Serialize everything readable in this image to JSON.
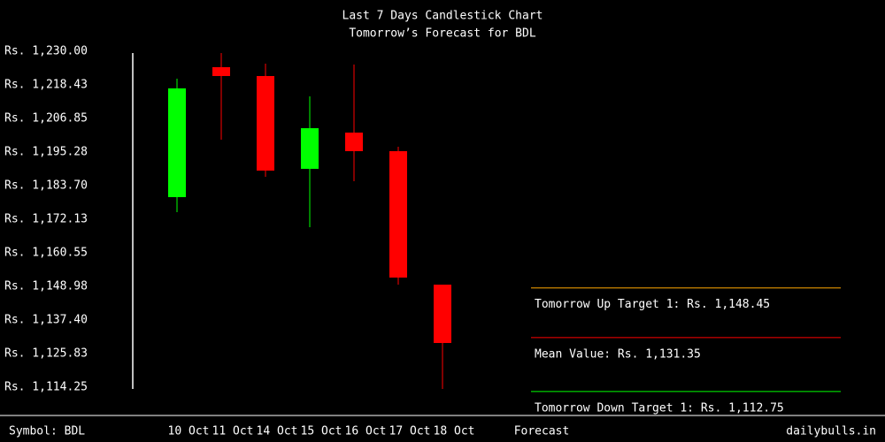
{
  "chart_data": {
    "type": "candlestick",
    "title": "Last 7 Days Candlestick Chart",
    "subtitle": "Tomorrow’s Forecast for BDL",
    "categories": [
      "10 Oct",
      "11 Oct",
      "14 Oct",
      "15 Oct",
      "16 Oct",
      "17 Oct",
      "18 Oct"
    ],
    "open": [
      1179.74,
      1224.52,
      1221.47,
      1189.49,
      1201.98,
      1195.58,
      1149.59
    ],
    "high": [
      1220.56,
      1229.39,
      1225.74,
      1214.47,
      1225.43,
      1197.1,
      1149.59
    ],
    "low": [
      1174.56,
      1199.54,
      1186.75,
      1169.39,
      1185.22,
      1149.59,
      1113.64
    ],
    "close": [
      1217.21,
      1221.47,
      1188.88,
      1203.5,
      1195.58,
      1152.02,
      1129.48
    ],
    "up_color": "#00ff00",
    "down_color": "#ff0000",
    "ylim": [
      1114.25,
      1230.0
    ],
    "yticks": [
      {
        "value": 1230.0,
        "label": "Rs. 1,230.00"
      },
      {
        "value": 1218.43,
        "label": "Rs. 1,218.43"
      },
      {
        "value": 1206.85,
        "label": "Rs. 1,206.85"
      },
      {
        "value": 1195.28,
        "label": "Rs. 1,195.28"
      },
      {
        "value": 1183.7,
        "label": "Rs. 1,183.70"
      },
      {
        "value": 1172.13,
        "label": "Rs. 1,172.13"
      },
      {
        "value": 1160.55,
        "label": "Rs. 1,160.55"
      },
      {
        "value": 1148.98,
        "label": "Rs. 1,148.98"
      },
      {
        "value": 1137.4,
        "label": "Rs. 1,137.40"
      },
      {
        "value": 1125.83,
        "label": "Rs. 1,125.83"
      },
      {
        "value": 1114.25,
        "label": "Rs. 1,114.25"
      }
    ],
    "forecast_heading": "Forecast",
    "forecast": [
      {
        "label": "Tomorrow Up Target 1: Rs. 1,148.45",
        "value": 1148.45,
        "color": "#ffa500"
      },
      {
        "label": "Mean Value: Rs. 1,131.35",
        "value": 1131.35,
        "color": "#ff0000"
      },
      {
        "label": "Tomorrow Down Target 1: Rs. 1,112.75",
        "value": 1112.75,
        "color": "#00ff00"
      }
    ],
    "symbol": "Symbol: BDL",
    "source": "dailybulls.in"
  }
}
